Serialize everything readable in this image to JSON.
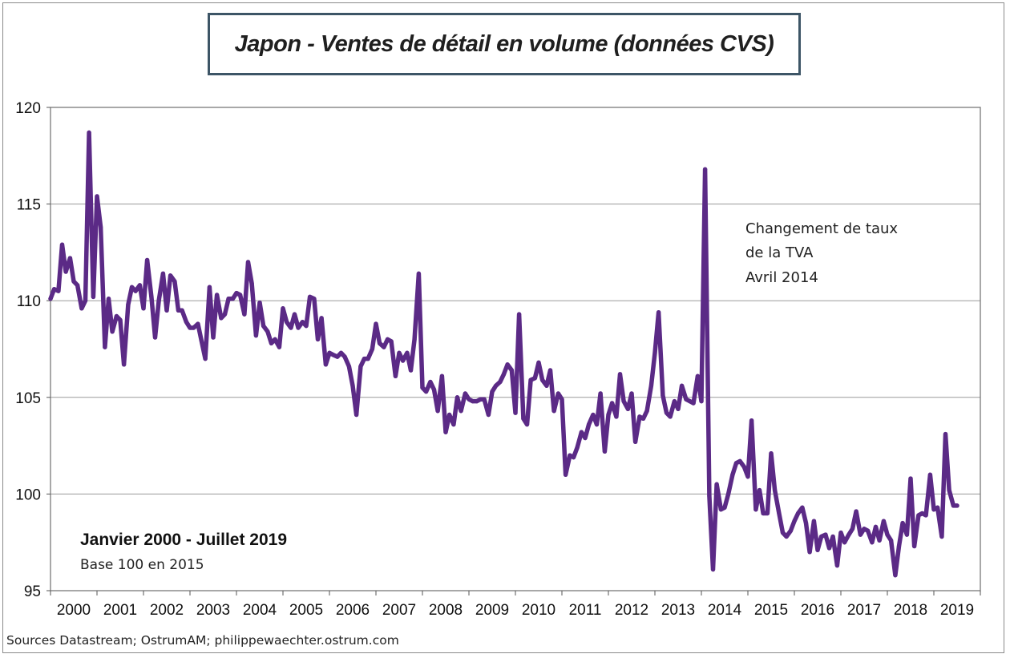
{
  "chart_data": {
    "type": "line",
    "title": "Japon - Ventes de détail en volume (données CVS)",
    "ylim": [
      95,
      120
    ],
    "yticks": [
      "95",
      "100",
      "105",
      "110",
      "115",
      "120"
    ],
    "ytick_values": [
      95,
      100,
      105,
      110,
      115,
      120
    ],
    "xlim": [
      2000.0,
      2020.0
    ],
    "xticks": [
      "2000",
      "2001",
      "2002",
      "2003",
      "2004",
      "2005",
      "2006",
      "2007",
      "2008",
      "2009",
      "2010",
      "2011",
      "2012",
      "2013",
      "2014",
      "2015",
      "2016",
      "2017",
      "2018",
      "2019"
    ],
    "grid": true,
    "series": [
      {
        "color": "#5b2a86",
        "points": [
          [
            2000.0,
            110.1
          ],
          [
            2000.08,
            110.6
          ],
          [
            2000.17,
            110.5
          ],
          [
            2000.25,
            112.9
          ],
          [
            2000.33,
            111.5
          ],
          [
            2000.42,
            112.2
          ],
          [
            2000.5,
            111.0
          ],
          [
            2000.58,
            110.8
          ],
          [
            2000.67,
            109.6
          ],
          [
            2000.75,
            110.0
          ],
          [
            2000.83,
            118.7
          ],
          [
            2000.92,
            110.2
          ],
          [
            2001.0,
            115.4
          ],
          [
            2001.08,
            113.8
          ],
          [
            2001.17,
            107.6
          ],
          [
            2001.25,
            110.1
          ],
          [
            2001.33,
            108.4
          ],
          [
            2001.42,
            109.2
          ],
          [
            2001.5,
            109.0
          ],
          [
            2001.58,
            106.7
          ],
          [
            2001.67,
            109.8
          ],
          [
            2001.75,
            110.7
          ],
          [
            2001.83,
            110.5
          ],
          [
            2001.92,
            110.8
          ],
          [
            2002.0,
            109.6
          ],
          [
            2002.08,
            112.1
          ],
          [
            2002.17,
            110.2
          ],
          [
            2002.25,
            108.1
          ],
          [
            2002.33,
            110.0
          ],
          [
            2002.42,
            111.4
          ],
          [
            2002.5,
            109.5
          ],
          [
            2002.58,
            111.3
          ],
          [
            2002.67,
            111.0
          ],
          [
            2002.75,
            109.5
          ],
          [
            2002.83,
            109.5
          ],
          [
            2002.92,
            108.9
          ],
          [
            2003.0,
            108.6
          ],
          [
            2003.08,
            108.6
          ],
          [
            2003.17,
            108.8
          ],
          [
            2003.25,
            107.9
          ],
          [
            2003.33,
            107.0
          ],
          [
            2003.42,
            110.7
          ],
          [
            2003.5,
            108.1
          ],
          [
            2003.58,
            110.3
          ],
          [
            2003.67,
            109.1
          ],
          [
            2003.75,
            109.3
          ],
          [
            2003.83,
            110.1
          ],
          [
            2003.92,
            110.1
          ],
          [
            2004.0,
            110.4
          ],
          [
            2004.08,
            110.3
          ],
          [
            2004.17,
            109.3
          ],
          [
            2004.25,
            112.0
          ],
          [
            2004.33,
            110.9
          ],
          [
            2004.42,
            108.2
          ],
          [
            2004.5,
            109.9
          ],
          [
            2004.58,
            108.7
          ],
          [
            2004.67,
            108.4
          ],
          [
            2004.75,
            107.8
          ],
          [
            2004.83,
            108.0
          ],
          [
            2004.92,
            107.6
          ],
          [
            2005.0,
            109.6
          ],
          [
            2005.08,
            108.9
          ],
          [
            2005.17,
            108.6
          ],
          [
            2005.25,
            109.3
          ],
          [
            2005.33,
            108.6
          ],
          [
            2005.42,
            108.9
          ],
          [
            2005.5,
            108.7
          ],
          [
            2005.58,
            110.2
          ],
          [
            2005.67,
            110.1
          ],
          [
            2005.75,
            108.0
          ],
          [
            2005.83,
            109.1
          ],
          [
            2005.92,
            106.7
          ],
          [
            2006.0,
            107.3
          ],
          [
            2006.08,
            107.2
          ],
          [
            2006.17,
            107.1
          ],
          [
            2006.25,
            107.3
          ],
          [
            2006.33,
            107.1
          ],
          [
            2006.42,
            106.6
          ],
          [
            2006.5,
            105.6
          ],
          [
            2006.58,
            104.1
          ],
          [
            2006.67,
            106.6
          ],
          [
            2006.75,
            107.0
          ],
          [
            2006.83,
            107.0
          ],
          [
            2006.92,
            107.5
          ],
          [
            2007.0,
            108.8
          ],
          [
            2007.08,
            107.8
          ],
          [
            2007.17,
            107.6
          ],
          [
            2007.25,
            108.0
          ],
          [
            2007.33,
            107.9
          ],
          [
            2007.42,
            106.1
          ],
          [
            2007.5,
            107.3
          ],
          [
            2007.58,
            106.9
          ],
          [
            2007.67,
            107.3
          ],
          [
            2007.75,
            106.4
          ],
          [
            2007.83,
            108.0
          ],
          [
            2007.92,
            111.4
          ],
          [
            2008.0,
            105.5
          ],
          [
            2008.08,
            105.3
          ],
          [
            2008.17,
            105.8
          ],
          [
            2008.25,
            105.4
          ],
          [
            2008.33,
            104.3
          ],
          [
            2008.42,
            106.1
          ],
          [
            2008.5,
            103.2
          ],
          [
            2008.58,
            104.1
          ],
          [
            2008.67,
            103.6
          ],
          [
            2008.75,
            105.0
          ],
          [
            2008.83,
            104.3
          ],
          [
            2008.92,
            105.2
          ],
          [
            2009.0,
            104.9
          ],
          [
            2009.08,
            104.8
          ],
          [
            2009.17,
            104.8
          ],
          [
            2009.25,
            104.9
          ],
          [
            2009.33,
            104.9
          ],
          [
            2009.42,
            104.1
          ],
          [
            2009.5,
            105.3
          ],
          [
            2009.58,
            105.6
          ],
          [
            2009.67,
            105.8
          ],
          [
            2009.75,
            106.2
          ],
          [
            2009.83,
            106.7
          ],
          [
            2009.92,
            106.4
          ],
          [
            2010.0,
            104.2
          ],
          [
            2010.08,
            109.3
          ],
          [
            2010.17,
            103.9
          ],
          [
            2010.25,
            103.6
          ],
          [
            2010.33,
            105.9
          ],
          [
            2010.42,
            106.0
          ],
          [
            2010.5,
            106.8
          ],
          [
            2010.58,
            105.9
          ],
          [
            2010.67,
            105.6
          ],
          [
            2010.75,
            106.4
          ],
          [
            2010.83,
            104.3
          ],
          [
            2010.92,
            105.2
          ],
          [
            2011.0,
            104.9
          ],
          [
            2011.08,
            101.0
          ],
          [
            2011.17,
            102.0
          ],
          [
            2011.25,
            101.9
          ],
          [
            2011.33,
            102.4
          ],
          [
            2011.42,
            103.2
          ],
          [
            2011.5,
            102.9
          ],
          [
            2011.58,
            103.6
          ],
          [
            2011.67,
            104.1
          ],
          [
            2011.75,
            103.6
          ],
          [
            2011.83,
            105.2
          ],
          [
            2011.92,
            102.2
          ],
          [
            2012.0,
            104.1
          ],
          [
            2012.08,
            104.7
          ],
          [
            2012.17,
            104.0
          ],
          [
            2012.25,
            106.2
          ],
          [
            2012.33,
            104.8
          ],
          [
            2012.42,
            104.4
          ],
          [
            2012.5,
            105.2
          ],
          [
            2012.58,
            102.7
          ],
          [
            2012.67,
            104.0
          ],
          [
            2012.75,
            103.9
          ],
          [
            2012.83,
            104.3
          ],
          [
            2012.92,
            105.6
          ],
          [
            2013.0,
            107.3
          ],
          [
            2013.08,
            109.4
          ],
          [
            2013.17,
            105.1
          ],
          [
            2013.25,
            104.2
          ],
          [
            2013.33,
            104.0
          ],
          [
            2013.42,
            104.8
          ],
          [
            2013.5,
            104.4
          ],
          [
            2013.58,
            105.6
          ],
          [
            2013.67,
            104.9
          ],
          [
            2013.75,
            104.8
          ],
          [
            2013.83,
            104.7
          ],
          [
            2013.92,
            106.1
          ],
          [
            2014.0,
            104.8
          ],
          [
            2014.08,
            116.8
          ],
          [
            2014.17,
            99.9
          ],
          [
            2014.25,
            96.1
          ],
          [
            2014.33,
            100.5
          ],
          [
            2014.42,
            99.2
          ],
          [
            2014.5,
            99.3
          ],
          [
            2014.58,
            100.0
          ],
          [
            2014.67,
            101.0
          ],
          [
            2014.75,
            101.6
          ],
          [
            2014.83,
            101.7
          ],
          [
            2014.92,
            101.4
          ],
          [
            2015.0,
            100.9
          ],
          [
            2015.08,
            103.8
          ],
          [
            2015.17,
            99.2
          ],
          [
            2015.25,
            100.2
          ],
          [
            2015.33,
            99.0
          ],
          [
            2015.42,
            99.0
          ],
          [
            2015.5,
            102.1
          ],
          [
            2015.58,
            100.2
          ],
          [
            2015.67,
            99.0
          ],
          [
            2015.75,
            98.0
          ],
          [
            2015.83,
            97.8
          ],
          [
            2015.92,
            98.1
          ],
          [
            2016.0,
            98.6
          ],
          [
            2016.08,
            99.0
          ],
          [
            2016.17,
            99.3
          ],
          [
            2016.25,
            98.5
          ],
          [
            2016.33,
            97.0
          ],
          [
            2016.42,
            98.6
          ],
          [
            2016.5,
            97.1
          ],
          [
            2016.58,
            97.8
          ],
          [
            2016.67,
            97.9
          ],
          [
            2016.75,
            97.2
          ],
          [
            2016.83,
            97.8
          ],
          [
            2016.92,
            96.3
          ],
          [
            2017.0,
            98.0
          ],
          [
            2017.08,
            97.5
          ],
          [
            2017.17,
            97.9
          ],
          [
            2017.25,
            98.2
          ],
          [
            2017.33,
            99.1
          ],
          [
            2017.42,
            97.9
          ],
          [
            2017.5,
            98.2
          ],
          [
            2017.58,
            98.1
          ],
          [
            2017.67,
            97.5
          ],
          [
            2017.75,
            98.3
          ],
          [
            2017.83,
            97.6
          ],
          [
            2017.92,
            98.6
          ],
          [
            2018.0,
            97.9
          ],
          [
            2018.08,
            97.6
          ],
          [
            2018.17,
            95.8
          ],
          [
            2018.25,
            97.3
          ],
          [
            2018.33,
            98.5
          ],
          [
            2018.42,
            97.9
          ],
          [
            2018.5,
            100.8
          ],
          [
            2018.58,
            97.3
          ],
          [
            2018.67,
            98.9
          ],
          [
            2018.75,
            99.0
          ],
          [
            2018.83,
            98.9
          ],
          [
            2018.92,
            101.0
          ],
          [
            2019.0,
            99.2
          ],
          [
            2019.08,
            99.3
          ],
          [
            2019.17,
            97.8
          ],
          [
            2019.25,
            103.1
          ],
          [
            2019.33,
            100.2
          ],
          [
            2019.42,
            99.4
          ],
          [
            2019.5,
            99.4
          ]
        ]
      }
    ]
  },
  "annotation": {
    "line1": "Changement de taux",
    "line2": "de la TVA",
    "line3": "Avril 2014"
  },
  "period_label": "Janvier 2000 - Juillet 2019",
  "base_label": "Base 100  en 2015",
  "source_label": "Sources  Datastream; OstrumAM; philippewaechter.ostrum.com"
}
